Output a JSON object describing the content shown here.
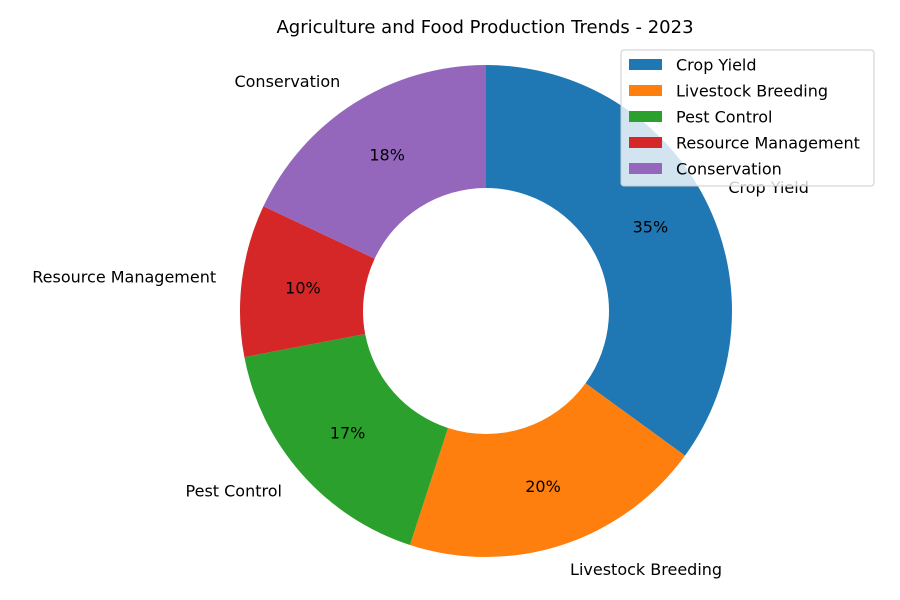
{
  "chart_data": {
    "type": "pie",
    "variant": "donut",
    "title": "Agriculture and Food Production Trends - 2023",
    "categories": [
      "Crop Yield",
      "Livestock Breeding",
      "Pest Control",
      "Resource Management",
      "Conservation"
    ],
    "values": [
      35,
      20,
      17,
      10,
      18
    ],
    "percent_labels": [
      "35%",
      "20%",
      "17%",
      "10%",
      "18%"
    ],
    "colors": [
      "#1f77b4",
      "#ff7f0e",
      "#2ca02c",
      "#d62728",
      "#9467bd"
    ],
    "start_angle": "top",
    "direction": "clockwise",
    "legend": {
      "placement": "top-right",
      "entries": [
        "Crop Yield",
        "Livestock Breeding",
        "Pest Control",
        "Resource Management",
        "Conservation"
      ]
    }
  }
}
